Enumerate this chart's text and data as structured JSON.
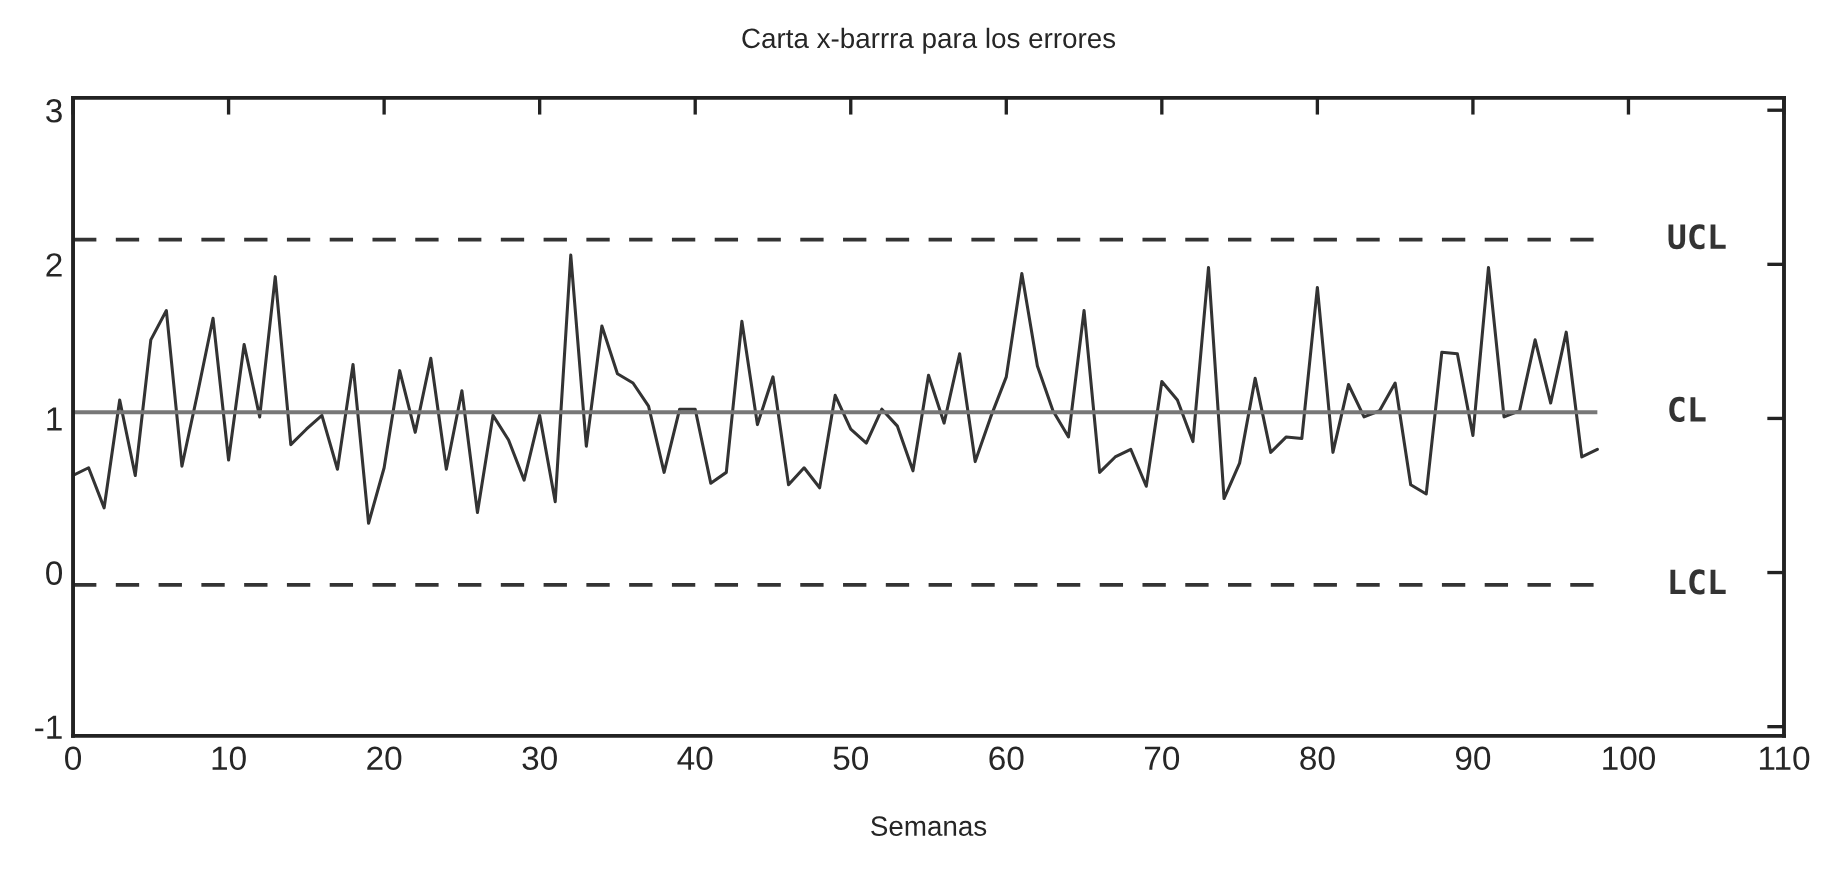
{
  "chart_data": {
    "type": "line",
    "title": "Carta x-barrra para los errores",
    "xlabel": "Semanas",
    "x": [
      0,
      1,
      2,
      3,
      4,
      5,
      6,
      7,
      8,
      9,
      10,
      11,
      12,
      13,
      14,
      15,
      16,
      17,
      18,
      19,
      20,
      21,
      22,
      23,
      24,
      25,
      26,
      27,
      28,
      29,
      30,
      31,
      32,
      33,
      34,
      35,
      36,
      37,
      38,
      39,
      40,
      41,
      42,
      43,
      44,
      45,
      46,
      47,
      48,
      49,
      50,
      51,
      52,
      53,
      54,
      55,
      56,
      57,
      58,
      59,
      60,
      61,
      62,
      63,
      64,
      65,
      66,
      67,
      68,
      69,
      70,
      71,
      72,
      73,
      74,
      75,
      76,
      77,
      78,
      79,
      80,
      81,
      82,
      83,
      84,
      85,
      86,
      87,
      88,
      89,
      90,
      91,
      92,
      93,
      94,
      95,
      96,
      97,
      98
    ],
    "series": [
      {
        "color": "#333333",
        "values": [
          0.63,
          0.68,
          0.42,
          1.12,
          0.63,
          1.51,
          1.7,
          0.69,
          1.16,
          1.65,
          0.73,
          1.48,
          1.01,
          1.92,
          0.83,
          0.93,
          1.02,
          0.67,
          1.35,
          0.32,
          0.68,
          1.31,
          0.91,
          1.39,
          0.67,
          1.18,
          0.39,
          1.02,
          0.86,
          0.6,
          1.02,
          0.46,
          2.06,
          0.82,
          1.6,
          1.29,
          1.23,
          1.08,
          0.65,
          1.06,
          1.06,
          0.58,
          0.65,
          1.63,
          0.96,
          1.27,
          0.57,
          0.68,
          0.55,
          1.15,
          0.93,
          0.84,
          1.06,
          0.95,
          0.66,
          1.28,
          0.97,
          1.42,
          0.72,
          1.01,
          1.27,
          1.94,
          1.34,
          1.05,
          0.88,
          1.7,
          0.65,
          0.75,
          0.8,
          0.56,
          1.24,
          1.12,
          0.85,
          1.98,
          0.48,
          0.71,
          1.26,
          0.78,
          0.88,
          0.87,
          1.85,
          0.78,
          1.22,
          1.01,
          1.05,
          1.23,
          0.57,
          0.51,
          1.43,
          1.42,
          0.89,
          1.98,
          1.01,
          1.05,
          1.51,
          1.1,
          1.56,
          0.75,
          0.8
        ]
      }
    ],
    "ref_lines": [
      {
        "axis": "y",
        "value": 2.16,
        "label": "UCL",
        "line_style": "dashed",
        "color": "#333333"
      },
      {
        "axis": "y",
        "value": 1.04,
        "label": "CL",
        "line_style": "solid",
        "color": "#777777"
      },
      {
        "axis": "y",
        "value": -0.08,
        "label": "LCL",
        "line_style": "dashed",
        "color": "#333333"
      }
    ],
    "xlim": [
      0,
      110
    ],
    "xticks": [
      0,
      10,
      20,
      30,
      40,
      50,
      60,
      70,
      80,
      90,
      100,
      110
    ],
    "ylim": [
      -1.06,
      3.08
    ],
    "yticks": [
      -1,
      0,
      1,
      2,
      3
    ],
    "grid": false,
    "legend": false,
    "marker": "none",
    "line_style": "solid"
  }
}
